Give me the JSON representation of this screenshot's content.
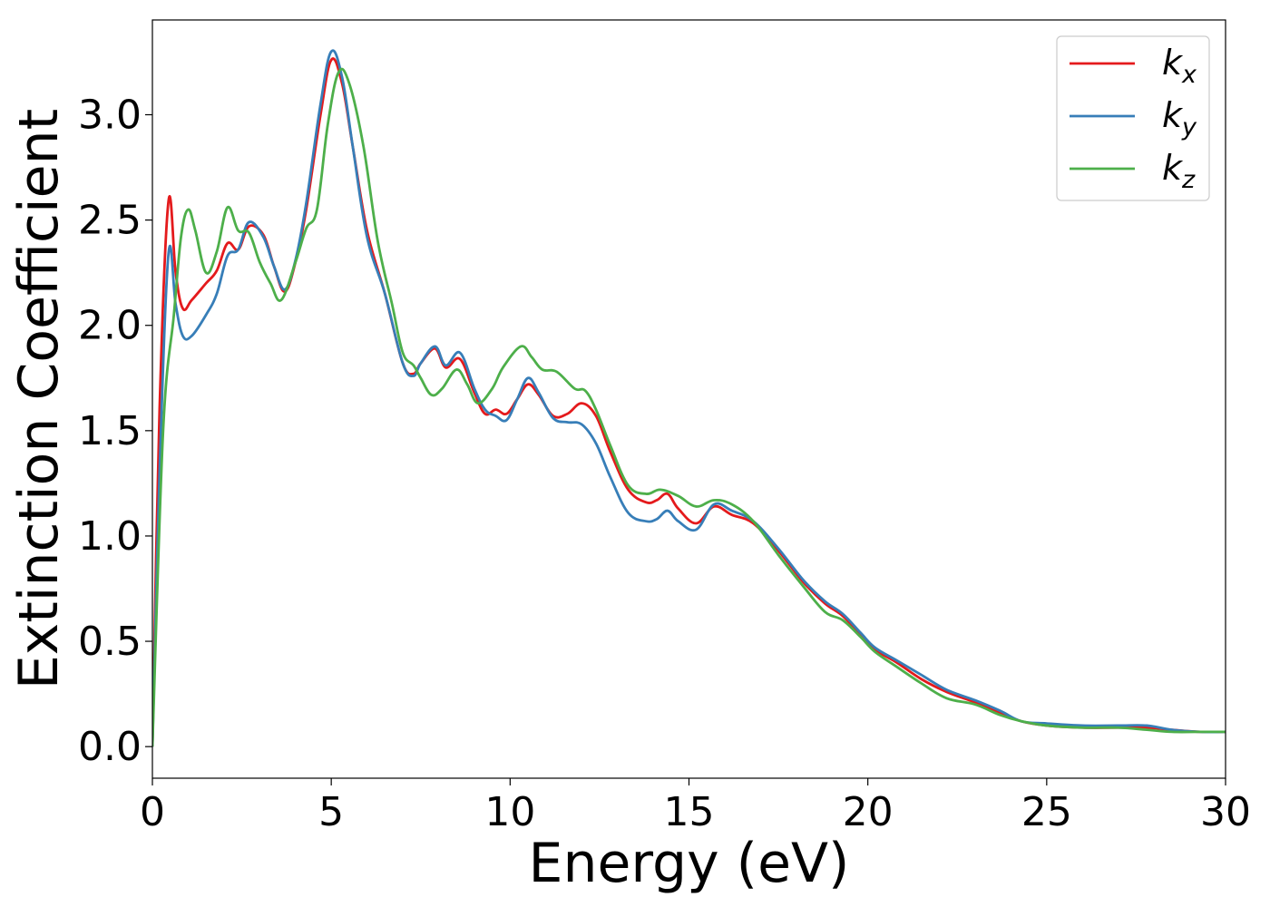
{
  "chart_data": {
    "type": "line",
    "title": "",
    "xlabel": "Energy (eV)",
    "ylabel": "Extinction Coefficient",
    "xlim": [
      0,
      30
    ],
    "ylim": [
      -0.15,
      3.45
    ],
    "xticks": [
      0,
      5,
      10,
      15,
      20,
      25,
      30
    ],
    "xtick_labels": [
      "0",
      "5",
      "10",
      "15",
      "20",
      "25",
      "30"
    ],
    "yticks": [
      0.0,
      0.5,
      1.0,
      1.5,
      2.0,
      2.5,
      3.0
    ],
    "ytick_labels": [
      "0.0",
      "0.5",
      "1.0",
      "1.5",
      "2.0",
      "2.5",
      "3.0"
    ],
    "grid": false,
    "legend_position": "top-right",
    "series": [
      {
        "name": "k_x",
        "label_base": "k",
        "label_sub": "x",
        "color": "#e41a1c",
        "points": [
          [
            0,
            0
          ],
          [
            0.2,
            1.6
          ],
          [
            0.45,
            2.59
          ],
          [
            0.65,
            2.25
          ],
          [
            0.85,
            2.08
          ],
          [
            1.1,
            2.12
          ],
          [
            1.5,
            2.2
          ],
          [
            1.8,
            2.26
          ],
          [
            2.1,
            2.39
          ],
          [
            2.4,
            2.36
          ],
          [
            2.7,
            2.47
          ],
          [
            3.1,
            2.43
          ],
          [
            3.4,
            2.28
          ],
          [
            3.7,
            2.16
          ],
          [
            4.0,
            2.3
          ],
          [
            4.3,
            2.55
          ],
          [
            4.7,
            3.0
          ],
          [
            5.0,
            3.26
          ],
          [
            5.3,
            3.15
          ],
          [
            5.6,
            2.85
          ],
          [
            6.0,
            2.45
          ],
          [
            6.5,
            2.15
          ],
          [
            7.0,
            1.82
          ],
          [
            7.3,
            1.77
          ],
          [
            7.5,
            1.82
          ],
          [
            7.9,
            1.89
          ],
          [
            8.2,
            1.8
          ],
          [
            8.6,
            1.84
          ],
          [
            9.0,
            1.68
          ],
          [
            9.3,
            1.58
          ],
          [
            9.6,
            1.6
          ],
          [
            9.9,
            1.58
          ],
          [
            10.2,
            1.65
          ],
          [
            10.5,
            1.72
          ],
          [
            10.8,
            1.67
          ],
          [
            11.2,
            1.57
          ],
          [
            11.6,
            1.58
          ],
          [
            12.0,
            1.63
          ],
          [
            12.4,
            1.57
          ],
          [
            12.8,
            1.4
          ],
          [
            13.3,
            1.22
          ],
          [
            13.8,
            1.16
          ],
          [
            14.1,
            1.17
          ],
          [
            14.4,
            1.2
          ],
          [
            14.7,
            1.13
          ],
          [
            15.2,
            1.06
          ],
          [
            15.7,
            1.14
          ],
          [
            16.2,
            1.1
          ],
          [
            16.8,
            1.06
          ],
          [
            17.5,
            0.93
          ],
          [
            18.2,
            0.78
          ],
          [
            18.8,
            0.68
          ],
          [
            19.3,
            0.62
          ],
          [
            19.8,
            0.53
          ],
          [
            20.2,
            0.46
          ],
          [
            20.8,
            0.4
          ],
          [
            21.5,
            0.32
          ],
          [
            22.2,
            0.26
          ],
          [
            23.0,
            0.21
          ],
          [
            23.7,
            0.16
          ],
          [
            24.3,
            0.12
          ],
          [
            25.0,
            0.1
          ],
          [
            26.0,
            0.09
          ],
          [
            27.0,
            0.09
          ],
          [
            27.8,
            0.09
          ],
          [
            28.5,
            0.08
          ],
          [
            29.3,
            0.07
          ],
          [
            30.0,
            0.07
          ]
        ]
      },
      {
        "name": "k_y",
        "label_base": "k",
        "label_sub": "y",
        "color": "#377eb8",
        "points": [
          [
            0,
            0
          ],
          [
            0.2,
            1.3
          ],
          [
            0.45,
            2.34
          ],
          [
            0.65,
            2.1
          ],
          [
            0.85,
            1.95
          ],
          [
            1.1,
            1.95
          ],
          [
            1.5,
            2.05
          ],
          [
            1.8,
            2.15
          ],
          [
            2.1,
            2.33
          ],
          [
            2.4,
            2.36
          ],
          [
            2.7,
            2.49
          ],
          [
            3.1,
            2.42
          ],
          [
            3.4,
            2.28
          ],
          [
            3.7,
            2.17
          ],
          [
            4.0,
            2.31
          ],
          [
            4.3,
            2.58
          ],
          [
            4.7,
            3.05
          ],
          [
            5.0,
            3.3
          ],
          [
            5.3,
            3.18
          ],
          [
            5.6,
            2.85
          ],
          [
            6.0,
            2.42
          ],
          [
            6.5,
            2.15
          ],
          [
            7.0,
            1.82
          ],
          [
            7.3,
            1.76
          ],
          [
            7.5,
            1.82
          ],
          [
            7.9,
            1.9
          ],
          [
            8.2,
            1.81
          ],
          [
            8.6,
            1.87
          ],
          [
            9.0,
            1.7
          ],
          [
            9.3,
            1.6
          ],
          [
            9.6,
            1.57
          ],
          [
            9.9,
            1.55
          ],
          [
            10.2,
            1.65
          ],
          [
            10.5,
            1.75
          ],
          [
            10.8,
            1.68
          ],
          [
            11.2,
            1.56
          ],
          [
            11.6,
            1.54
          ],
          [
            12.0,
            1.53
          ],
          [
            12.4,
            1.44
          ],
          [
            12.8,
            1.28
          ],
          [
            13.3,
            1.11
          ],
          [
            13.8,
            1.07
          ],
          [
            14.1,
            1.08
          ],
          [
            14.4,
            1.12
          ],
          [
            14.7,
            1.07
          ],
          [
            15.2,
            1.03
          ],
          [
            15.7,
            1.15
          ],
          [
            16.2,
            1.12
          ],
          [
            16.8,
            1.07
          ],
          [
            17.5,
            0.94
          ],
          [
            18.2,
            0.79
          ],
          [
            18.8,
            0.69
          ],
          [
            19.3,
            0.63
          ],
          [
            19.8,
            0.54
          ],
          [
            20.2,
            0.47
          ],
          [
            20.8,
            0.41
          ],
          [
            21.5,
            0.34
          ],
          [
            22.2,
            0.27
          ],
          [
            23.0,
            0.22
          ],
          [
            23.7,
            0.17
          ],
          [
            24.3,
            0.12
          ],
          [
            25.0,
            0.11
          ],
          [
            26.0,
            0.1
          ],
          [
            27.0,
            0.1
          ],
          [
            27.8,
            0.1
          ],
          [
            28.5,
            0.08
          ],
          [
            29.3,
            0.07
          ],
          [
            30.0,
            0.07
          ]
        ]
      },
      {
        "name": "k_z",
        "label_base": "k",
        "label_sub": "z",
        "color": "#4daf4a",
        "points": [
          [
            0,
            0
          ],
          [
            0.3,
            1.5
          ],
          [
            0.6,
            2.05
          ],
          [
            0.8,
            2.42
          ],
          [
            1.0,
            2.55
          ],
          [
            1.2,
            2.45
          ],
          [
            1.5,
            2.25
          ],
          [
            1.8,
            2.35
          ],
          [
            2.1,
            2.56
          ],
          [
            2.4,
            2.45
          ],
          [
            2.7,
            2.44
          ],
          [
            3.0,
            2.3
          ],
          [
            3.3,
            2.2
          ],
          [
            3.6,
            2.12
          ],
          [
            4.0,
            2.3
          ],
          [
            4.3,
            2.46
          ],
          [
            4.6,
            2.55
          ],
          [
            4.9,
            2.95
          ],
          [
            5.2,
            3.2
          ],
          [
            5.5,
            3.15
          ],
          [
            5.9,
            2.85
          ],
          [
            6.3,
            2.4
          ],
          [
            6.7,
            2.1
          ],
          [
            7.0,
            1.87
          ],
          [
            7.3,
            1.81
          ],
          [
            7.5,
            1.75
          ],
          [
            7.8,
            1.67
          ],
          [
            8.1,
            1.7
          ],
          [
            8.5,
            1.79
          ],
          [
            8.8,
            1.72
          ],
          [
            9.1,
            1.63
          ],
          [
            9.5,
            1.7
          ],
          [
            9.8,
            1.8
          ],
          [
            10.3,
            1.9
          ],
          [
            10.6,
            1.85
          ],
          [
            10.9,
            1.79
          ],
          [
            11.3,
            1.78
          ],
          [
            11.8,
            1.7
          ],
          [
            12.1,
            1.69
          ],
          [
            12.4,
            1.6
          ],
          [
            12.8,
            1.43
          ],
          [
            13.3,
            1.24
          ],
          [
            13.8,
            1.2
          ],
          [
            14.2,
            1.22
          ],
          [
            14.7,
            1.19
          ],
          [
            15.2,
            1.14
          ],
          [
            15.7,
            1.17
          ],
          [
            16.2,
            1.15
          ],
          [
            16.8,
            1.07
          ],
          [
            17.5,
            0.91
          ],
          [
            18.2,
            0.76
          ],
          [
            18.8,
            0.64
          ],
          [
            19.3,
            0.6
          ],
          [
            19.8,
            0.52
          ],
          [
            20.2,
            0.45
          ],
          [
            20.8,
            0.38
          ],
          [
            21.5,
            0.3
          ],
          [
            22.2,
            0.23
          ],
          [
            23.0,
            0.2
          ],
          [
            23.7,
            0.15
          ],
          [
            24.3,
            0.12
          ],
          [
            25.0,
            0.1
          ],
          [
            26.0,
            0.09
          ],
          [
            27.0,
            0.09
          ],
          [
            27.8,
            0.08
          ],
          [
            28.5,
            0.07
          ],
          [
            29.3,
            0.07
          ],
          [
            30.0,
            0.07
          ]
        ]
      }
    ]
  }
}
